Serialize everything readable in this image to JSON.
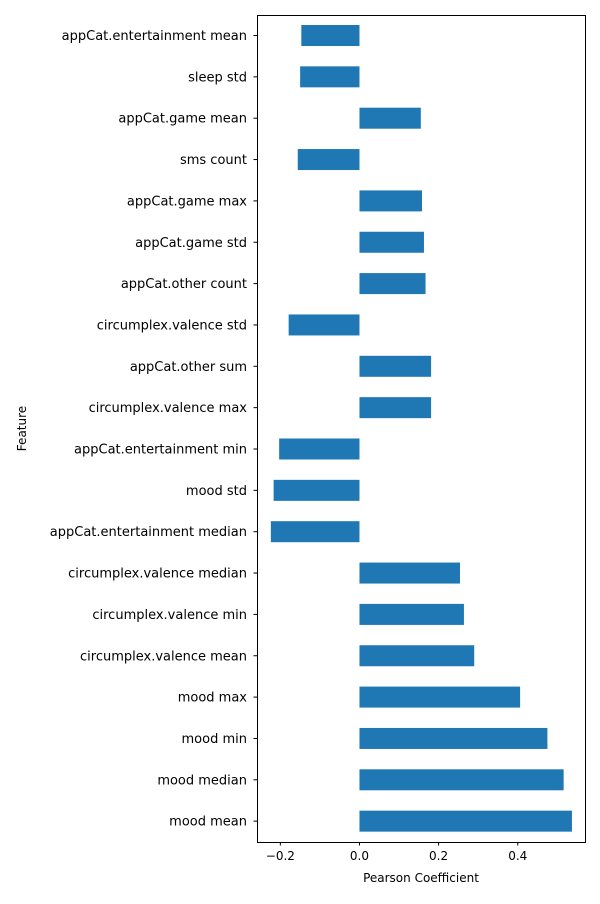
{
  "chart_data": {
    "type": "bar",
    "orientation": "horizontal",
    "title": "",
    "xlabel": "Pearson Coefficient",
    "ylabel": "Feature",
    "categories": [
      "appCat.entertainment mean",
      "sleep std",
      "appCat.game mean",
      "sms count",
      "appCat.game max",
      "appCat.game std",
      "appCat.other count",
      "circumplex.valence std",
      "appCat.other sum",
      "circumplex.valence max",
      "appCat.entertainment min",
      "mood std",
      "appCat.entertainment median",
      "circumplex.valence median",
      "circumplex.valence min",
      "circumplex.valence mean",
      "mood max",
      "mood min",
      "mood median",
      "mood mean"
    ],
    "values": [
      -0.147,
      -0.15,
      0.155,
      -0.156,
      0.158,
      0.163,
      0.167,
      -0.179,
      0.181,
      0.181,
      -0.203,
      -0.217,
      -0.224,
      0.254,
      0.264,
      0.29,
      0.406,
      0.475,
      0.516,
      0.537
    ],
    "xlim": [
      -0.259,
      0.57
    ],
    "xticks": [
      -0.2,
      0.0,
      0.2,
      0.4
    ],
    "xtick_labels": [
      "−0.2",
      "0.0",
      "0.2",
      "0.4"
    ],
    "bar_color": "#1f77b4",
    "grid": false,
    "legend": "none"
  }
}
